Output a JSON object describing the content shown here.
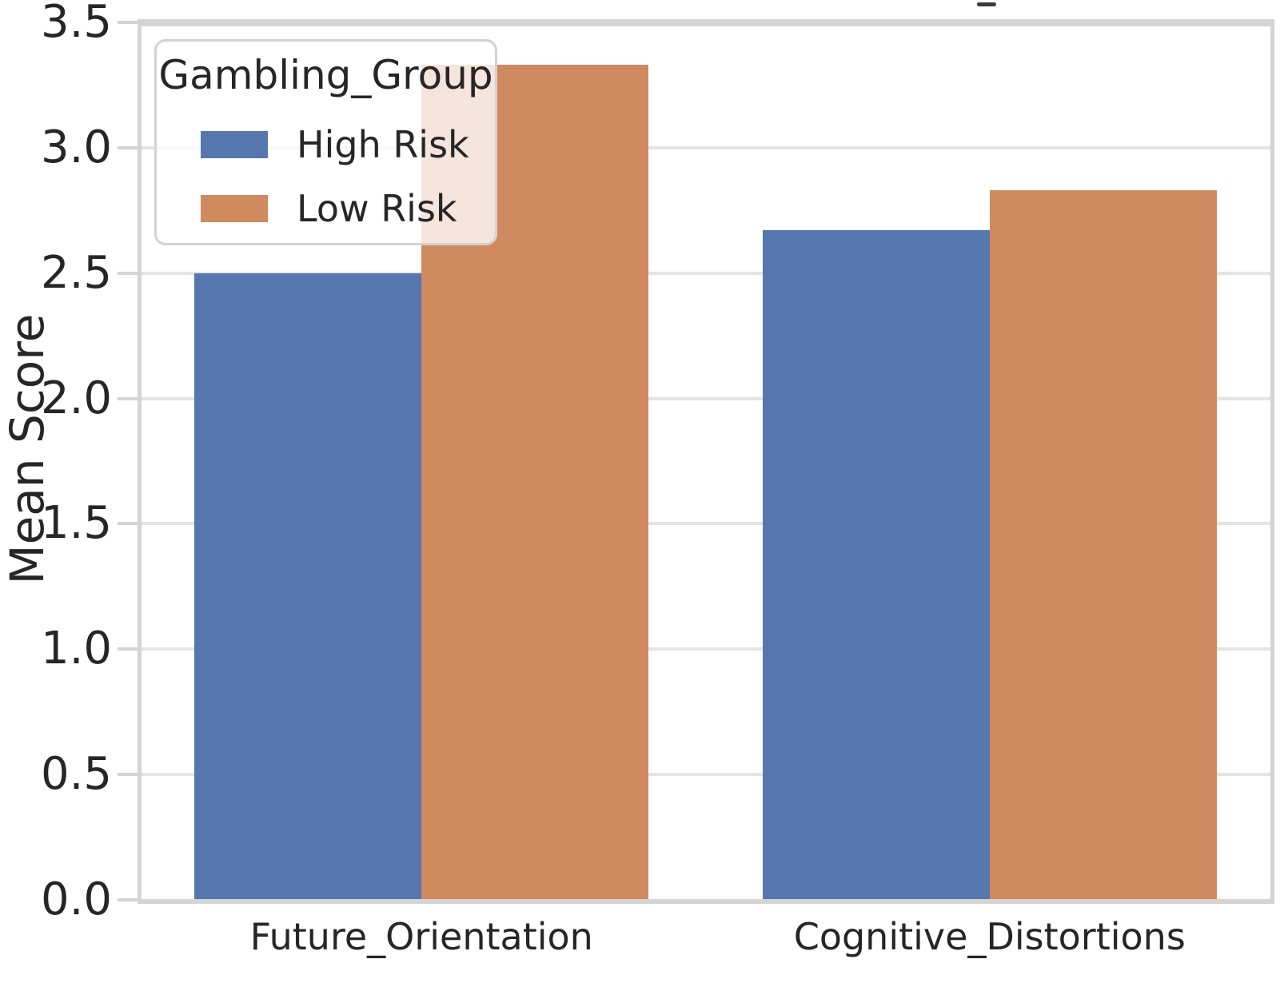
{
  "chart_data": {
    "type": "bar",
    "categories": [
      "Future_Orientation",
      "Cognitive_Distortions"
    ],
    "series": [
      {
        "name": "High Risk",
        "color": "#5577AD",
        "values": [
          2.5,
          2.67
        ]
      },
      {
        "name": "Low Risk",
        "color": "#CF8A5F",
        "values": [
          3.33,
          2.83
        ]
      }
    ],
    "title": "",
    "xlabel": "",
    "ylabel": "Mean Score",
    "ylim": [
      0,
      3.5
    ],
    "yticks": [
      0.0,
      0.5,
      1.0,
      1.5,
      2.0,
      2.5,
      3.0,
      3.5
    ],
    "grid": "horizontal-only",
    "group_width_fraction": 0.8,
    "legend": {
      "title": "Gambling_Group",
      "entries": [
        "High Risk",
        "Low Risk"
      ],
      "position": "upper left"
    },
    "colors": {
      "grid": "#e4e4e4",
      "spine": "#d4d4d4",
      "text": "#262626",
      "background": "#ffffff"
    }
  }
}
